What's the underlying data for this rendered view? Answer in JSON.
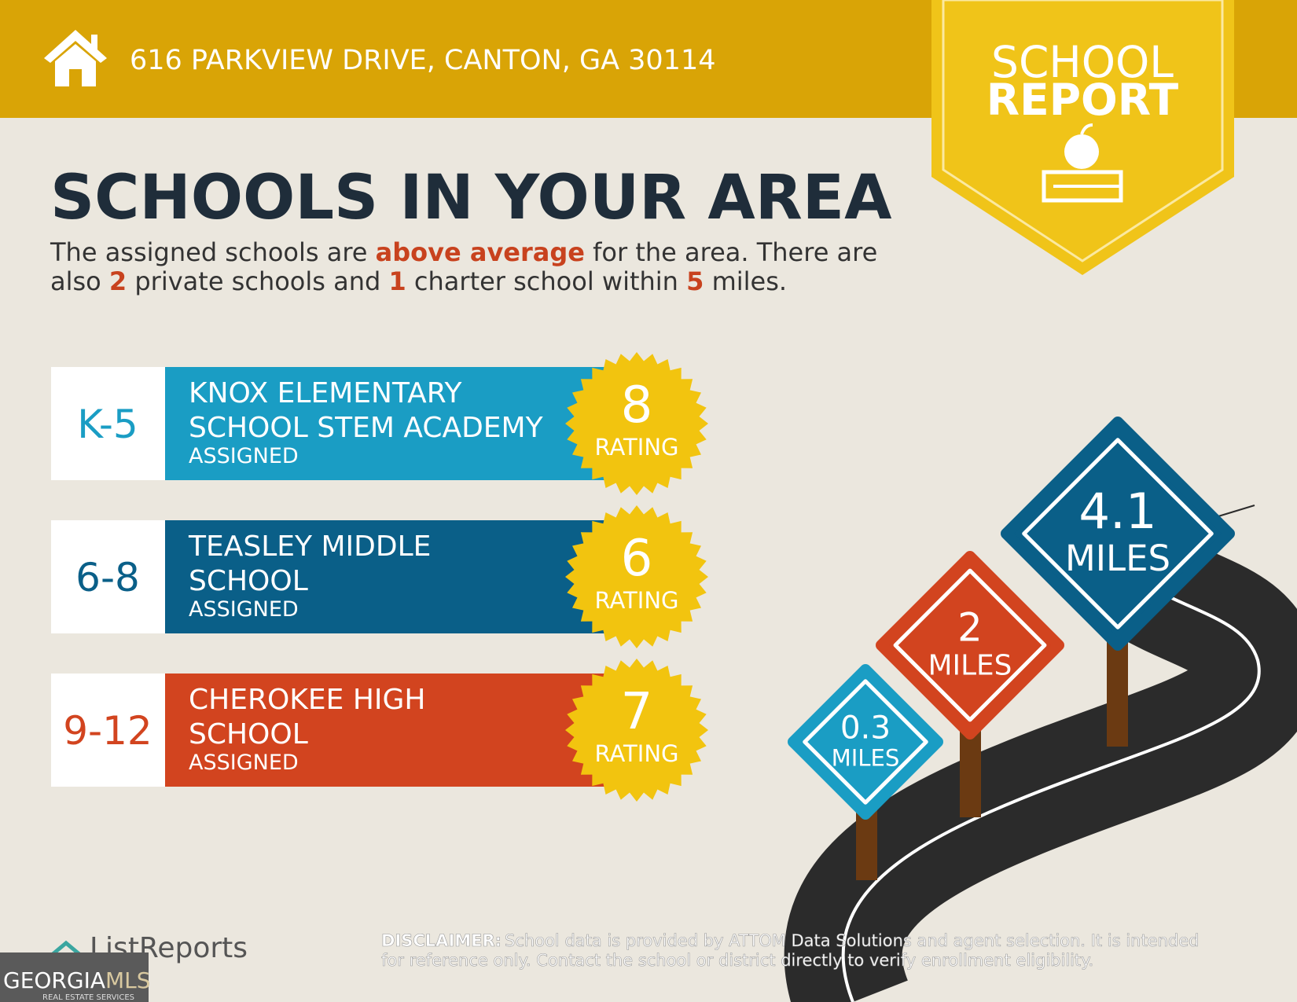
{
  "header": {
    "address": "616 PARKVIEW DRIVE, CANTON, GA 30114"
  },
  "badge": {
    "line1": "SCHOOL",
    "line2": "REPORT"
  },
  "title": "SCHOOLS IN YOUR AREA",
  "summary": {
    "lines": [
      [
        {
          "text": "The assigned schools are ",
          "highlight": false
        },
        {
          "text": "above average",
          "highlight": true
        },
        {
          "text": " for the area. There are",
          "highlight": false
        }
      ],
      [
        {
          "text": "also ",
          "highlight": false
        },
        {
          "text": "2",
          "highlight": true
        },
        {
          "text": " private schools and ",
          "highlight": false
        },
        {
          "text": "1",
          "highlight": true
        },
        {
          "text": " charter school within ",
          "highlight": false
        },
        {
          "text": "5",
          "highlight": true
        },
        {
          "text": " miles.",
          "highlight": false
        }
      ]
    ]
  },
  "schools": [
    {
      "grades": "K-5",
      "name_lines": [
        "KNOX ELEMENTARY",
        "SCHOOL STEM ACADEMY"
      ],
      "status": "ASSIGNED",
      "rating": 8,
      "rating_label": "RATING",
      "color": "#1a9dc4"
    },
    {
      "grades": "6-8",
      "name_lines": [
        "TEASLEY MIDDLE",
        "SCHOOL"
      ],
      "status": "ASSIGNED",
      "rating": 6,
      "rating_label": "RATING",
      "color": "#0a5f88"
    },
    {
      "grades": "9-12",
      "name_lines": [
        "CHEROKEE HIGH",
        "SCHOOL"
      ],
      "status": "ASSIGNED",
      "rating": 7,
      "rating_label": "RATING",
      "color": "#d2441f"
    }
  ],
  "distances": [
    {
      "value": 0.3,
      "unit": "MILES",
      "color": "#1a9dc4"
    },
    {
      "value": 2,
      "unit": "MILES",
      "color": "#d2441f"
    },
    {
      "value": 4.1,
      "unit": "MILES",
      "color": "#0a5f88"
    }
  ],
  "footer": {
    "logo": "ListReports",
    "mls_a": "GEORGIA",
    "mls_b": "MLS",
    "mls_sub": "REAL ESTATE SERVICES",
    "disclaimer_label": "DISCLAIMER:",
    "disclaimer_lines": [
      "School data is provided by ATTOM Data Solutions and agent selection. It is intended",
      "for reference only. Contact the school or district directly to verify enrollment eligibility."
    ]
  }
}
